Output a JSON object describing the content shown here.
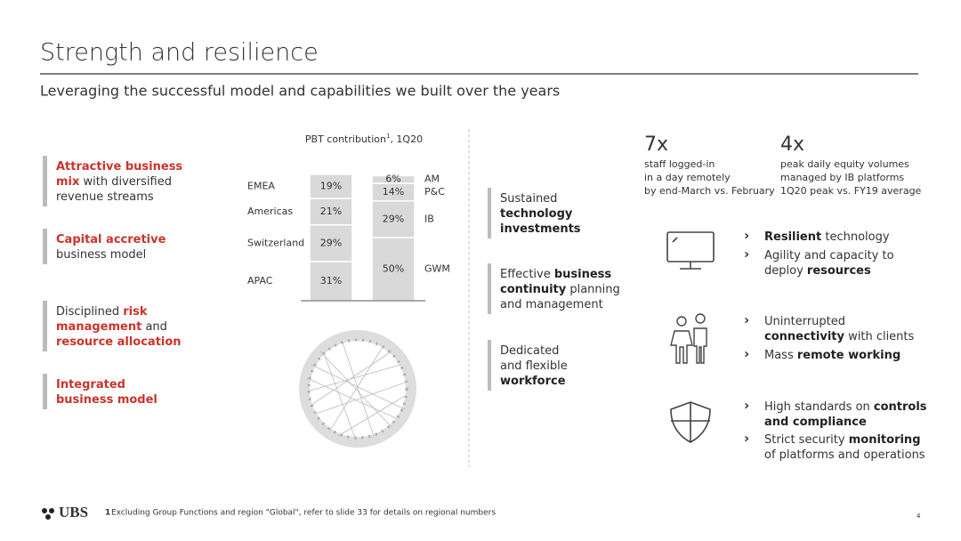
{
  "header": {
    "title": "Strength and resilience",
    "subtitle": "Leveraging the successful model and capabilities we built over the years"
  },
  "left_items": [
    {
      "lines": [
        [
          {
            "text": "Attractive business",
            "style": "accent"
          }
        ],
        [
          {
            "text": "mix",
            "style": "accent"
          },
          {
            "text": " with diversified"
          }
        ],
        [
          {
            "text": "revenue streams"
          }
        ]
      ]
    },
    {
      "lines": [
        [
          {
            "text": "Capital accretive",
            "style": "accent"
          }
        ],
        [
          {
            "text": "business model"
          }
        ]
      ]
    },
    {
      "lines": [
        [
          {
            "text": "Disciplined "
          },
          {
            "text": "risk",
            "style": "accent"
          }
        ],
        [
          {
            "text": "management",
            "style": "accent"
          },
          {
            "text": " and"
          }
        ],
        [
          {
            "text": "resource allocation",
            "style": "accent"
          }
        ]
      ]
    },
    {
      "lines": [
        [
          {
            "text": "Integrated",
            "style": "accent"
          }
        ],
        [
          {
            "text": "business model",
            "style": "accent"
          }
        ]
      ]
    }
  ],
  "chart_data": {
    "type": "stacked_bar",
    "title": "PBT contribution",
    "title_note": "1",
    "title_suffix": ", 1Q20",
    "color": "#d9d9d9",
    "ylim": [
      0,
      100
    ],
    "bars": [
      {
        "label_side": "left",
        "categories": [
          "EMEA",
          "Americas",
          "Switzerland",
          "APAC"
        ],
        "values": [
          19,
          21,
          29,
          31
        ],
        "value_labels": [
          "19%",
          "21%",
          "29%",
          "31%"
        ]
      },
      {
        "label_side": "right",
        "categories": [
          "AM",
          "P&C",
          "IB",
          "GWM"
        ],
        "values": [
          6,
          14,
          29,
          50
        ],
        "value_labels": [
          "6%",
          "14%",
          "29%",
          "50%"
        ]
      }
    ]
  },
  "middle_items": [
    {
      "lines": [
        [
          {
            "text": "Sustained"
          }
        ],
        [
          {
            "text": "technology",
            "style": "bold"
          }
        ],
        [
          {
            "text": "investments",
            "style": "bold"
          }
        ]
      ]
    },
    {
      "lines": [
        [
          {
            "text": "Effective "
          },
          {
            "text": "business",
            "style": "bold"
          }
        ],
        [
          {
            "text": "continuity",
            "style": "bold"
          },
          {
            "text": " planning"
          }
        ],
        [
          {
            "text": "and management"
          }
        ]
      ]
    },
    {
      "lines": [
        [
          {
            "text": "Dedicated"
          }
        ],
        [
          {
            "text": "and flexible"
          }
        ],
        [
          {
            "text": "workforce",
            "style": "bold"
          }
        ]
      ]
    }
  ],
  "stats": [
    {
      "value": "7x",
      "lines": [
        "staff logged-in",
        "in a day remotely"
      ],
      "note": "by end-March vs. February"
    },
    {
      "value": "4x",
      "lines": [
        "peak daily equity volumes",
        "managed by IB platforms"
      ],
      "note": "1Q20 peak vs. FY19 average"
    }
  ],
  "right_groups": [
    {
      "bullets": [
        {
          "lines": [
            [
              {
                "text": "Resilient",
                "style": "bold"
              },
              {
                "text": " technology"
              }
            ]
          ]
        },
        {
          "lines": [
            [
              {
                "text": "Agility and capacity to"
              }
            ],
            [
              {
                "text": "deploy "
              },
              {
                "text": "resources",
                "style": "bold"
              }
            ]
          ]
        }
      ]
    },
    {
      "bullets": [
        {
          "lines": [
            [
              {
                "text": "Uninterrupted"
              }
            ],
            [
              {
                "text": "connectivity",
                "style": "bold"
              },
              {
                "text": " with clients"
              }
            ]
          ]
        },
        {
          "lines": [
            [
              {
                "text": "Mass "
              },
              {
                "text": "remote working",
                "style": "bold"
              }
            ]
          ]
        }
      ]
    },
    {
      "bullets": [
        {
          "lines": [
            [
              {
                "text": "High standards on "
              },
              {
                "text": "controls",
                "style": "bold"
              }
            ],
            [
              {
                "text": "and compliance",
                "style": "bold"
              }
            ]
          ]
        },
        {
          "lines": [
            [
              {
                "text": "Strict security "
              },
              {
                "text": "monitoring",
                "style": "bold"
              }
            ],
            [
              {
                "text": "of platforms and operations"
              }
            ]
          ]
        }
      ]
    }
  ],
  "bullet_marker": "›",
  "footer": {
    "logo": "UBS",
    "footnote_marker": "1",
    "footnote": "Excluding Group Functions and region \"Global\", refer to slide 33 for details on regional numbers",
    "page": "4"
  }
}
